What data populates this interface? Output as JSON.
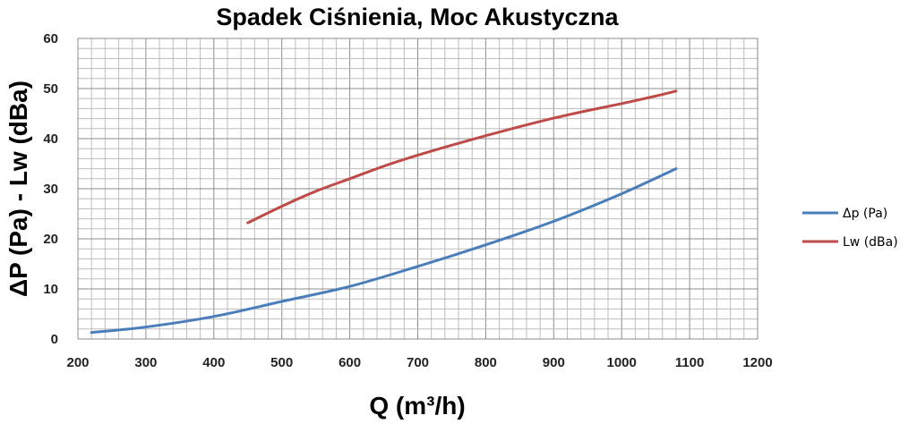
{
  "chart_data": {
    "type": "line",
    "title": "Spadek Ciśnienia, Moc Akustyczna",
    "xlabel": "Q (m³/h)",
    "ylabel": "ΔP (Pa) - Lw (dBa)",
    "xlim": [
      200,
      1200
    ],
    "ylim": [
      0,
      60
    ],
    "x_ticks": [
      "200",
      "300",
      "400",
      "500",
      "600",
      "700",
      "800",
      "900",
      "1000",
      "1100",
      "1200"
    ],
    "y_ticks": [
      "0",
      "10",
      "20",
      "30",
      "40",
      "50",
      "60"
    ],
    "grid": true,
    "legend_position": "right",
    "series": [
      {
        "name": "Δp (Pa)",
        "color": "#4a7ebb",
        "x": [
          220,
          300,
          400,
          500,
          600,
          700,
          800,
          900,
          1000,
          1080
        ],
        "y": [
          1.3,
          2.4,
          4.5,
          7.5,
          10.5,
          14.5,
          18.8,
          23.5,
          29.0,
          34.0
        ]
      },
      {
        "name": "Lw (dBa)",
        "color": "#be4b48",
        "x": [
          450,
          500,
          550,
          600,
          650,
          700,
          750,
          800,
          850,
          900,
          950,
          1000,
          1050,
          1080
        ],
        "y": [
          23.2,
          26.5,
          29.5,
          32.0,
          34.5,
          36.7,
          38.7,
          40.6,
          42.4,
          44.1,
          45.6,
          47.0,
          48.5,
          49.5
        ]
      }
    ]
  }
}
